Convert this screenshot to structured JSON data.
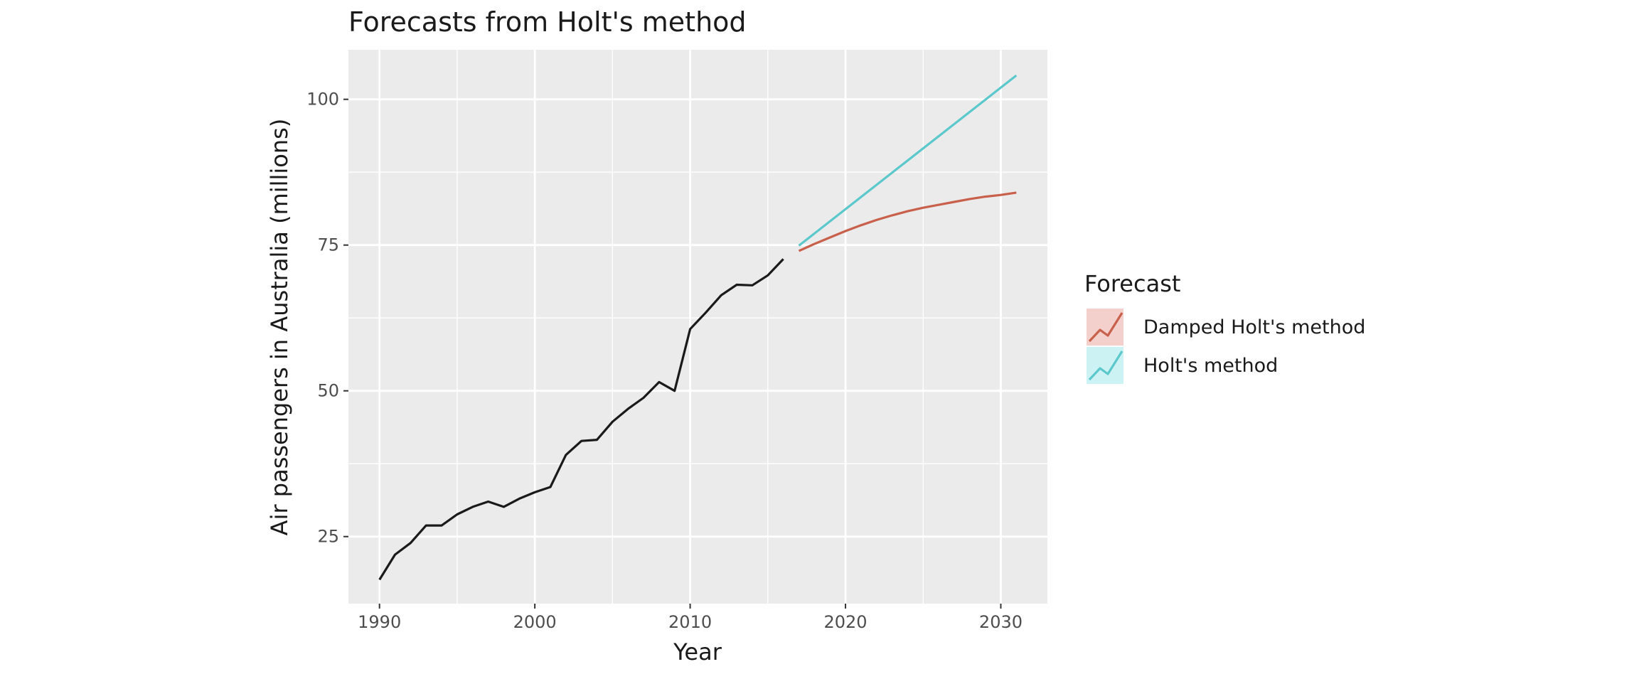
{
  "chart_data": {
    "type": "line",
    "title": "Forecasts from Holt's method",
    "xlabel": "Year",
    "ylabel": "Air passengers in Australia (millions)",
    "xlim": [
      1988,
      2033
    ],
    "ylim": [
      13.5,
      108.5
    ],
    "x_ticks": [
      1990,
      2000,
      2010,
      2020,
      2030
    ],
    "x_minor_ticks": [
      1995,
      2005,
      2015,
      2025
    ],
    "y_ticks": [
      25,
      50,
      75,
      100
    ],
    "y_minor_ticks": [
      37.5,
      62.5,
      87.5
    ],
    "grid": true,
    "legend": {
      "title": "Forecast",
      "placement": "right",
      "entries": [
        {
          "label": "Damped Holt's method",
          "color": "#c8604b",
          "fill": "#f3d0cb"
        },
        {
          "label": "Holt's method",
          "color": "#5bc8cc",
          "fill": "#ccf2f4"
        }
      ]
    },
    "series": [
      {
        "color": "#1a1a1a",
        "x": [
          1990,
          1991,
          1992,
          1993,
          1994,
          1995,
          1996,
          1997,
          1998,
          1999,
          2000,
          2001,
          2002,
          2003,
          2004,
          2005,
          2006,
          2007,
          2008,
          2009,
          2010,
          2011,
          2012,
          2013,
          2014,
          2015,
          2016
        ],
        "values": [
          17.6,
          21.9,
          23.9,
          26.9,
          26.9,
          28.8,
          30.1,
          31.0,
          30.1,
          31.5,
          32.6,
          33.5,
          39.0,
          41.4,
          41.6,
          44.7,
          46.9,
          48.8,
          51.5,
          50.0,
          60.6,
          63.4,
          66.4,
          68.2,
          68.1,
          69.8,
          72.6
        ]
      },
      {
        "name": "Damped Holt's method",
        "color": "#c8604b",
        "x": [
          2017,
          2018,
          2019,
          2020,
          2021,
          2022,
          2023,
          2024,
          2025,
          2026,
          2027,
          2028,
          2029,
          2030,
          2031
        ],
        "values": [
          74.0,
          75.2,
          76.3,
          77.4,
          78.4,
          79.3,
          80.1,
          80.8,
          81.4,
          81.9,
          82.4,
          82.9,
          83.3,
          83.6,
          84.0
        ]
      },
      {
        "name": "Holt's method",
        "color": "#5bc8cc",
        "x": [
          2017,
          2031
        ],
        "values": [
          74.9,
          104.1
        ]
      }
    ]
  }
}
